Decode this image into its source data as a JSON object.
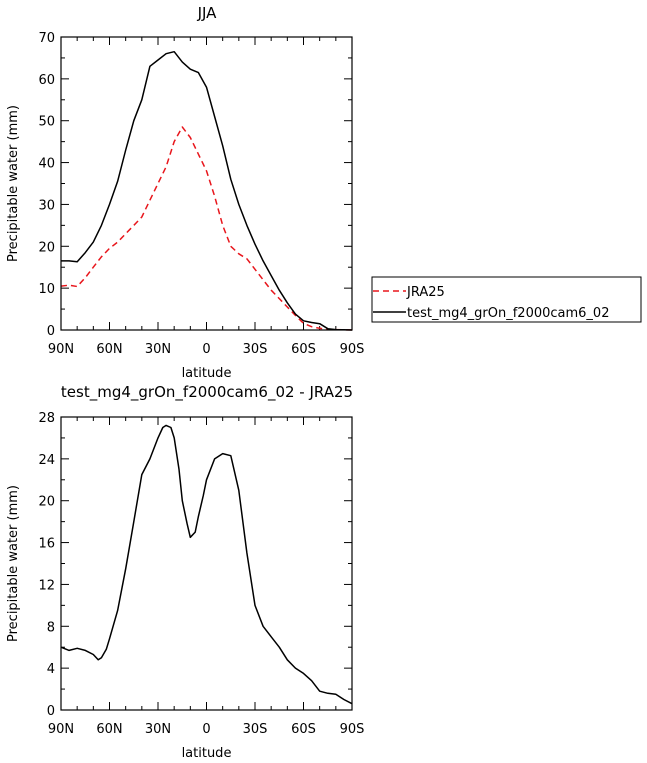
{
  "chart_data": [
    {
      "type": "line",
      "title": "JJA",
      "xlabel": "latitude",
      "ylabel": "Precipitable water (mm)",
      "xlim": [
        90,
        -90
      ],
      "ylim": [
        0,
        70
      ],
      "xticks": [
        90,
        60,
        30,
        0,
        -30,
        -60,
        -90
      ],
      "xtick_labels": [
        "90N",
        "60N",
        "30N",
        "0",
        "30S",
        "60S",
        "90S"
      ],
      "yticks": [
        0,
        10,
        20,
        30,
        40,
        50,
        60,
        70
      ],
      "ytick_labels": [
        "0",
        "10",
        "20",
        "30",
        "40",
        "50",
        "60",
        "70"
      ],
      "legend": "right",
      "series": [
        {
          "name": "JRA25",
          "color": "#e8161c",
          "dash": "dashed",
          "x": [
            90,
            85,
            80,
            75,
            70,
            65,
            60,
            55,
            50,
            45,
            40,
            35,
            30,
            25,
            20,
            15,
            10,
            5,
            0,
            -5,
            -10,
            -15,
            -20,
            -25,
            -30,
            -35,
            -40,
            -45,
            -50,
            -55,
            -60,
            -65,
            -70,
            -75,
            -80,
            -85,
            -90
          ],
          "y": [
            10.5,
            10.7,
            10.4,
            12.5,
            15,
            17.5,
            19.5,
            21,
            23,
            25,
            27,
            31,
            35,
            39,
            45,
            48.5,
            46,
            42,
            38,
            32,
            25,
            20,
            18.2,
            17,
            14.5,
            12,
            9.5,
            7.5,
            5.5,
            3.5,
            1.6,
            0.8,
            0.4,
            0.2,
            0.1,
            0.05,
            0.02
          ]
        },
        {
          "name": "test_mg4_grOn_f2000cam6_02",
          "color": "#000000",
          "dash": "solid",
          "x": [
            90,
            85,
            80,
            75,
            70,
            65,
            60,
            55,
            50,
            45,
            40,
            35,
            30,
            25,
            20,
            15,
            10,
            5,
            0,
            -5,
            -10,
            -15,
            -20,
            -25,
            -30,
            -35,
            -40,
            -45,
            -50,
            -55,
            -60,
            -65,
            -70,
            -75,
            -80,
            -85,
            -90
          ],
          "y": [
            16.5,
            16.5,
            16.3,
            18.5,
            21,
            25,
            30,
            35.5,
            43,
            50,
            55,
            63,
            64.5,
            66,
            66.5,
            64,
            62.3,
            61.5,
            58,
            51,
            44,
            36,
            30,
            25,
            20.5,
            16.5,
            13,
            9.5,
            6.5,
            3.8,
            2.2,
            1.8,
            1.5,
            0.3,
            0.1,
            0.05,
            0.0
          ]
        }
      ]
    },
    {
      "type": "line",
      "title": "test_mg4_grOn_f2000cam6_02 - JRA25",
      "xlabel": "latitude",
      "ylabel": "Precipitable water (mm)",
      "xlim": [
        90,
        -90
      ],
      "ylim": [
        0,
        28
      ],
      "xticks": [
        90,
        60,
        30,
        0,
        -30,
        -60,
        -90
      ],
      "xtick_labels": [
        "90N",
        "60N",
        "30N",
        "0",
        "30S",
        "60S",
        "90S"
      ],
      "yticks": [
        0,
        4,
        8,
        12,
        16,
        20,
        24,
        28
      ],
      "ytick_labels": [
        "0",
        "4",
        "8",
        "12",
        "16",
        "20",
        "24",
        "28"
      ],
      "series": [
        {
          "color": "#000000",
          "dash": "solid",
          "x": [
            90,
            85,
            80,
            75,
            70,
            67,
            65,
            62,
            60,
            55,
            50,
            45,
            40,
            35,
            30,
            27,
            25,
            22,
            20,
            17,
            15,
            12,
            10,
            7,
            5,
            2,
            0,
            -5,
            -10,
            -15,
            -20,
            -25,
            -30,
            -35,
            -40,
            -45,
            -50,
            -55,
            -60,
            -65,
            -70,
            -75,
            -80,
            -85,
            -90
          ],
          "y": [
            6.0,
            5.7,
            5.9,
            5.7,
            5.3,
            4.8,
            5.0,
            5.8,
            6.8,
            9.5,
            13.5,
            18.0,
            22.5,
            24.0,
            26.0,
            27.0,
            27.2,
            27.0,
            26.0,
            23.0,
            20.0,
            17.8,
            16.5,
            17.0,
            18.5,
            20.5,
            22.0,
            24.0,
            24.5,
            24.3,
            21.0,
            15.0,
            10.0,
            8.0,
            7.0,
            6.0,
            4.8,
            4.0,
            3.5,
            2.8,
            1.8,
            1.6,
            1.5,
            1.0,
            0.6
          ]
        }
      ]
    }
  ]
}
